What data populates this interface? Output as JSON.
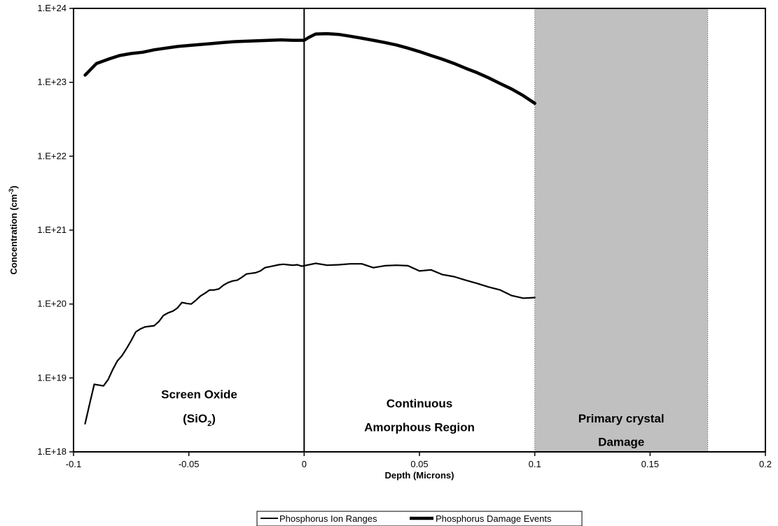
{
  "chart_data": {
    "type": "line",
    "x_axis": {
      "label": "Depth (Microns)",
      "range": [
        -0.1,
        0.2
      ],
      "ticks": [
        -0.1,
        -0.05,
        0,
        0.05,
        0.1,
        0.15,
        0.2
      ],
      "tick_labels": [
        "-0.1",
        "-0.05",
        "0",
        "0.05",
        "0.1",
        "0.15",
        "0.2"
      ]
    },
    "y_axis": {
      "label_base": "Concentration (cm",
      "label_exponent": "-3",
      "label_close": ")",
      "scale": "log",
      "range": [
        1e+18,
        1e+24
      ],
      "ticks": [
        1e+18,
        1e+19,
        1e+20,
        1e+21,
        1e+22,
        1e+23,
        1e+24
      ],
      "tick_labels": [
        "1.E+18",
        "1.E+19",
        "1.E+20",
        "1.E+21",
        "1.E+22",
        "1.E+23",
        "1.E+24"
      ]
    },
    "grid": false,
    "legend_position": "bottom",
    "series": [
      {
        "name": "Phosphorus Ion Ranges",
        "line_width": "thin",
        "x": [
          -0.095,
          -0.093,
          -0.091,
          -0.089,
          -0.087,
          -0.085,
          -0.083,
          -0.081,
          -0.079,
          -0.077,
          -0.075,
          -0.073,
          -0.071,
          -0.069,
          -0.067,
          -0.065,
          -0.063,
          -0.061,
          -0.059,
          -0.057,
          -0.055,
          -0.053,
          -0.051,
          -0.049,
          -0.047,
          -0.045,
          -0.043,
          -0.041,
          -0.039,
          -0.037,
          -0.035,
          -0.033,
          -0.031,
          -0.029,
          -0.027,
          -0.025,
          -0.023,
          -0.021,
          -0.019,
          -0.017,
          -0.015,
          -0.013,
          -0.011,
          -0.009,
          -0.007,
          -0.005,
          -0.003,
          -0.001,
          0.0,
          0.005,
          0.01,
          0.015,
          0.02,
          0.025,
          0.03,
          0.035,
          0.04,
          0.045,
          0.05,
          0.055,
          0.06,
          0.065,
          0.07,
          0.075,
          0.08,
          0.085,
          0.09,
          0.095,
          0.1
        ],
        "y": [
          2.4e+18,
          4.5e+18,
          8.2e+18,
          8e+18,
          7.8e+18,
          9.5e+18,
          1.3e+19,
          1.7e+19,
          2e+19,
          2.5e+19,
          3.2e+19,
          4.2e+19,
          4.6e+19,
          4.9e+19,
          5e+19,
          5.1e+19,
          5.8e+19,
          7e+19,
          7.6e+19,
          8e+19,
          8.8e+19,
          1.05e+20,
          1.02e+20,
          1e+20,
          1.12e+20,
          1.28e+20,
          1.4e+20,
          1.55e+20,
          1.55e+20,
          1.6e+20,
          1.8e+20,
          1.95e+20,
          2.05e+20,
          2.1e+20,
          2.3e+20,
          2.55e+20,
          2.6e+20,
          2.65e+20,
          2.8e+20,
          3.1e+20,
          3.2e+20,
          3.3e+20,
          3.4e+20,
          3.45e+20,
          3.4e+20,
          3.35e+20,
          3.4e+20,
          3.25e+20,
          3.3e+20,
          3.55e+20,
          3.35e+20,
          3.4e+20,
          3.5e+20,
          3.5e+20,
          3.1e+20,
          3.3e+20,
          3.35e+20,
          3.3e+20,
          2.8e+20,
          2.9e+20,
          2.5e+20,
          2.35e+20,
          2.1e+20,
          1.9e+20,
          1.7e+20,
          1.55e+20,
          1.3e+20,
          1.2e+20,
          1.22e+20
        ],
        "x_rebased": false
      },
      {
        "name": "Phosphorus Damage Events",
        "line_width": "thick",
        "x": [
          -0.095,
          -0.09,
          -0.085,
          -0.08,
          -0.075,
          -0.07,
          -0.065,
          -0.06,
          -0.055,
          -0.05,
          -0.045,
          -0.04,
          -0.035,
          -0.03,
          -0.025,
          -0.02,
          -0.015,
          -0.01,
          -0.005,
          0.0,
          0.002,
          0.005,
          0.01,
          0.015,
          0.02,
          0.025,
          0.03,
          0.035,
          0.04,
          0.045,
          0.05,
          0.055,
          0.06,
          0.065,
          0.07,
          0.075,
          0.08,
          0.085,
          0.09,
          0.095,
          0.1
        ],
        "y": [
          1.25e+23,
          1.8e+23,
          2.05e+23,
          2.3e+23,
          2.45e+23,
          2.55e+23,
          2.75e+23,
          2.9e+23,
          3.05e+23,
          3.15e+23,
          3.25e+23,
          3.35e+23,
          3.45e+23,
          3.55e+23,
          3.6e+23,
          3.65e+23,
          3.7e+23,
          3.75e+23,
          3.7e+23,
          3.7e+23,
          4.05e+23,
          4.5e+23,
          4.55e+23,
          4.45e+23,
          4.2e+23,
          3.95e+23,
          3.7e+23,
          3.45e+23,
          3.2e+23,
          2.9e+23,
          2.6e+23,
          2.3e+23,
          2.05e+23,
          1.8e+23,
          1.55e+23,
          1.35e+23,
          1.15e+23,
          9.6e+22,
          8.1e+22,
          6.6e+22,
          5.2e+22
        ]
      }
    ],
    "regions": [
      {
        "name": "screen-oxide",
        "label_line1": "Screen Oxide",
        "label_line2_base": "(SiO",
        "label_line2_sub": "2",
        "label_line2_close": ")",
        "label_x": -0.0455,
        "label_line1_y": 5.3e+18,
        "label_line2_y": 2.5e+18
      },
      {
        "name": "amorphous",
        "label_line1": "Continuous",
        "label_line2": "Amorphous Region",
        "label_x": 0.05,
        "label_line1_y": 4e+18,
        "label_line2_y": 1.9e+18
      },
      {
        "name": "primary-damage",
        "label_line1": "Primary crystal",
        "label_line2": "Damage",
        "label_x": 0.1375,
        "label_line1_y": 2.5e+18,
        "label_line2_y": 1.2e+18,
        "x_start": 0.1,
        "x_end": 0.175,
        "fill": "#c0c0c0"
      }
    ],
    "interface_line_x": 0,
    "colors": {
      "line": "#000000",
      "damage_fill": "#c0c0c0",
      "background": "#ffffff"
    }
  }
}
